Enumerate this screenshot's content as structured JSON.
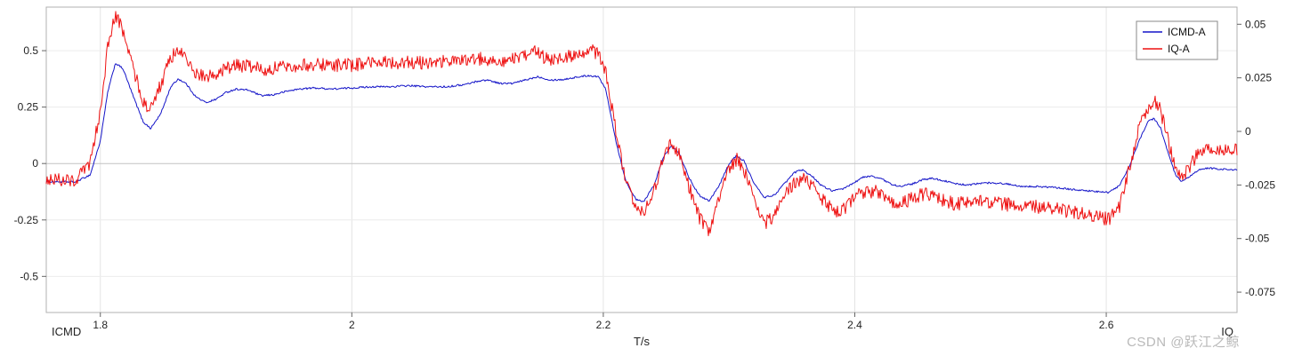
{
  "watermark": "CSDN @跃江之鲸",
  "chart_data": {
    "type": "line",
    "title": "",
    "xlabel": "T/s",
    "xlim": [
      1.757,
      2.704
    ],
    "x_ticks": [
      1.8,
      2.0,
      2.2,
      2.4,
      2.6
    ],
    "x_tick_labels": [
      "1.8",
      "2",
      "2.2",
      "2.4",
      "2.6"
    ],
    "grid": true,
    "axes": {
      "left": {
        "title": "ICMD",
        "lim": [
          -0.66,
          0.693
        ],
        "ticks": [
          0.5,
          0.25,
          0,
          -0.25,
          -0.5
        ],
        "tick_labels": [
          "0.5",
          "0.25",
          "0",
          "-0.25",
          "-0.5"
        ]
      },
      "right": {
        "title": "IQ",
        "lim": [
          -0.0845,
          0.058
        ],
        "ticks": [
          0.05,
          0.025,
          0,
          -0.025,
          -0.05,
          -0.075
        ],
        "tick_labels": [
          "0.05",
          "0.025",
          "0",
          "-0.025",
          "-0.05",
          "-0.075"
        ]
      }
    },
    "legend": {
      "position": "top-right",
      "entries": [
        "ICMD-A",
        "IQ-A"
      ]
    },
    "series": [
      {
        "name": "ICMD-A",
        "color": "#1414c8",
        "axis": "left",
        "noise": 0.004,
        "width": 1,
        "points": [
          [
            1.757,
            -0.08
          ],
          [
            1.78,
            -0.082
          ],
          [
            1.792,
            -0.05
          ],
          [
            1.8,
            0.1
          ],
          [
            1.806,
            0.32
          ],
          [
            1.812,
            0.445
          ],
          [
            1.818,
            0.42
          ],
          [
            1.826,
            0.3
          ],
          [
            1.834,
            0.185
          ],
          [
            1.84,
            0.155
          ],
          [
            1.848,
            0.22
          ],
          [
            1.856,
            0.34
          ],
          [
            1.862,
            0.375
          ],
          [
            1.868,
            0.355
          ],
          [
            1.876,
            0.295
          ],
          [
            1.884,
            0.27
          ],
          [
            1.892,
            0.285
          ],
          [
            1.9,
            0.315
          ],
          [
            1.908,
            0.33
          ],
          [
            1.918,
            0.325
          ],
          [
            1.928,
            0.3
          ],
          [
            1.938,
            0.305
          ],
          [
            1.948,
            0.32
          ],
          [
            1.958,
            0.33
          ],
          [
            1.97,
            0.335
          ],
          [
            1.985,
            0.33
          ],
          [
            2.0,
            0.335
          ],
          [
            2.015,
            0.34
          ],
          [
            2.03,
            0.34
          ],
          [
            2.045,
            0.345
          ],
          [
            2.06,
            0.34
          ],
          [
            2.075,
            0.34
          ],
          [
            2.09,
            0.35
          ],
          [
            2.1,
            0.365
          ],
          [
            2.108,
            0.37
          ],
          [
            2.118,
            0.355
          ],
          [
            2.128,
            0.355
          ],
          [
            2.138,
            0.37
          ],
          [
            2.148,
            0.385
          ],
          [
            2.158,
            0.37
          ],
          [
            2.168,
            0.372
          ],
          [
            2.178,
            0.382
          ],
          [
            2.188,
            0.39
          ],
          [
            2.196,
            0.385
          ],
          [
            2.202,
            0.33
          ],
          [
            2.21,
            0.1
          ],
          [
            2.218,
            -0.08
          ],
          [
            2.226,
            -0.16
          ],
          [
            2.232,
            -0.17
          ],
          [
            2.24,
            -0.1
          ],
          [
            2.248,
            0.03
          ],
          [
            2.254,
            0.08
          ],
          [
            2.26,
            0.05
          ],
          [
            2.268,
            -0.06
          ],
          [
            2.276,
            -0.14
          ],
          [
            2.284,
            -0.165
          ],
          [
            2.292,
            -0.1
          ],
          [
            2.3,
            0.0
          ],
          [
            2.306,
            0.035
          ],
          [
            2.312,
            0.01
          ],
          [
            2.32,
            -0.09
          ],
          [
            2.328,
            -0.15
          ],
          [
            2.336,
            -0.14
          ],
          [
            2.344,
            -0.09
          ],
          [
            2.352,
            -0.04
          ],
          [
            2.358,
            -0.028
          ],
          [
            2.366,
            -0.055
          ],
          [
            2.374,
            -0.1
          ],
          [
            2.382,
            -0.12
          ],
          [
            2.39,
            -0.115
          ],
          [
            2.398,
            -0.09
          ],
          [
            2.406,
            -0.062
          ],
          [
            2.414,
            -0.055
          ],
          [
            2.422,
            -0.07
          ],
          [
            2.43,
            -0.095
          ],
          [
            2.438,
            -0.1
          ],
          [
            2.446,
            -0.09
          ],
          [
            2.454,
            -0.072
          ],
          [
            2.462,
            -0.065
          ],
          [
            2.47,
            -0.075
          ],
          [
            2.48,
            -0.09
          ],
          [
            2.49,
            -0.095
          ],
          [
            2.5,
            -0.088
          ],
          [
            2.51,
            -0.085
          ],
          [
            2.52,
            -0.09
          ],
          [
            2.532,
            -0.1
          ],
          [
            2.544,
            -0.102
          ],
          [
            2.556,
            -0.105
          ],
          [
            2.568,
            -0.112
          ],
          [
            2.58,
            -0.118
          ],
          [
            2.592,
            -0.125
          ],
          [
            2.602,
            -0.128
          ],
          [
            2.61,
            -0.1
          ],
          [
            2.618,
            -0.02
          ],
          [
            2.626,
            0.1
          ],
          [
            2.633,
            0.185
          ],
          [
            2.638,
            0.2
          ],
          [
            2.643,
            0.16
          ],
          [
            2.649,
            0.05
          ],
          [
            2.655,
            -0.05
          ],
          [
            2.66,
            -0.082
          ],
          [
            2.666,
            -0.06
          ],
          [
            2.673,
            -0.03
          ],
          [
            2.681,
            -0.02
          ],
          [
            2.69,
            -0.025
          ],
          [
            2.704,
            -0.028
          ]
        ]
      },
      {
        "name": "IQ-A",
        "color": "#ee1111",
        "axis": "right",
        "noise": 0.0032,
        "width": 1,
        "points": [
          [
            1.757,
            -0.022
          ],
          [
            1.78,
            -0.023
          ],
          [
            1.792,
            -0.015
          ],
          [
            1.8,
            0.01
          ],
          [
            1.806,
            0.04
          ],
          [
            1.812,
            0.054
          ],
          [
            1.818,
            0.047
          ],
          [
            1.826,
            0.03
          ],
          [
            1.834,
            0.014
          ],
          [
            1.84,
            0.01
          ],
          [
            1.848,
            0.022
          ],
          [
            1.856,
            0.034
          ],
          [
            1.862,
            0.038
          ],
          [
            1.868,
            0.034
          ],
          [
            1.876,
            0.027
          ],
          [
            1.884,
            0.025
          ],
          [
            1.892,
            0.027
          ],
          [
            1.9,
            0.029
          ],
          [
            1.91,
            0.031
          ],
          [
            1.92,
            0.03
          ],
          [
            1.93,
            0.029
          ],
          [
            1.945,
            0.03
          ],
          [
            1.96,
            0.031
          ],
          [
            1.98,
            0.031
          ],
          [
            2.0,
            0.031
          ],
          [
            2.02,
            0.032
          ],
          [
            2.04,
            0.032
          ],
          [
            2.06,
            0.032
          ],
          [
            2.08,
            0.033
          ],
          [
            2.1,
            0.034
          ],
          [
            2.12,
            0.033
          ],
          [
            2.135,
            0.034
          ],
          [
            2.145,
            0.037
          ],
          [
            2.155,
            0.034
          ],
          [
            2.168,
            0.034
          ],
          [
            2.18,
            0.036
          ],
          [
            2.19,
            0.038
          ],
          [
            2.197,
            0.036
          ],
          [
            2.203,
            0.025
          ],
          [
            2.21,
            0.0
          ],
          [
            2.218,
            -0.025
          ],
          [
            2.226,
            -0.036
          ],
          [
            2.233,
            -0.038
          ],
          [
            2.24,
            -0.028
          ],
          [
            2.248,
            -0.012
          ],
          [
            2.254,
            -0.006
          ],
          [
            2.26,
            -0.01
          ],
          [
            2.268,
            -0.025
          ],
          [
            2.276,
            -0.04
          ],
          [
            2.284,
            -0.046
          ],
          [
            2.292,
            -0.032
          ],
          [
            2.3,
            -0.017
          ],
          [
            2.306,
            -0.013
          ],
          [
            2.312,
            -0.018
          ],
          [
            2.32,
            -0.033
          ],
          [
            2.328,
            -0.043
          ],
          [
            2.336,
            -0.04
          ],
          [
            2.344,
            -0.03
          ],
          [
            2.352,
            -0.024
          ],
          [
            2.36,
            -0.022
          ],
          [
            2.368,
            -0.027
          ],
          [
            2.376,
            -0.033
          ],
          [
            2.384,
            -0.037
          ],
          [
            2.392,
            -0.036
          ],
          [
            2.4,
            -0.031
          ],
          [
            2.408,
            -0.028
          ],
          [
            2.416,
            -0.028
          ],
          [
            2.424,
            -0.031
          ],
          [
            2.432,
            -0.034
          ],
          [
            2.44,
            -0.033
          ],
          [
            2.45,
            -0.03
          ],
          [
            2.46,
            -0.029
          ],
          [
            2.47,
            -0.032
          ],
          [
            2.48,
            -0.034
          ],
          [
            2.49,
            -0.033
          ],
          [
            2.5,
            -0.032
          ],
          [
            2.51,
            -0.033
          ],
          [
            2.52,
            -0.034
          ],
          [
            2.532,
            -0.035
          ],
          [
            2.544,
            -0.035
          ],
          [
            2.556,
            -0.036
          ],
          [
            2.568,
            -0.037
          ],
          [
            2.58,
            -0.038
          ],
          [
            2.592,
            -0.04
          ],
          [
            2.602,
            -0.041
          ],
          [
            2.61,
            -0.036
          ],
          [
            2.618,
            -0.018
          ],
          [
            2.626,
            0.002
          ],
          [
            2.633,
            0.011
          ],
          [
            2.638,
            0.014
          ],
          [
            2.643,
            0.01
          ],
          [
            2.649,
            -0.004
          ],
          [
            2.655,
            -0.016
          ],
          [
            2.66,
            -0.021
          ],
          [
            2.666,
            -0.017
          ],
          [
            2.673,
            -0.01
          ],
          [
            2.681,
            -0.008
          ],
          [
            2.69,
            -0.009
          ],
          [
            2.704,
            -0.009
          ]
        ]
      }
    ]
  }
}
